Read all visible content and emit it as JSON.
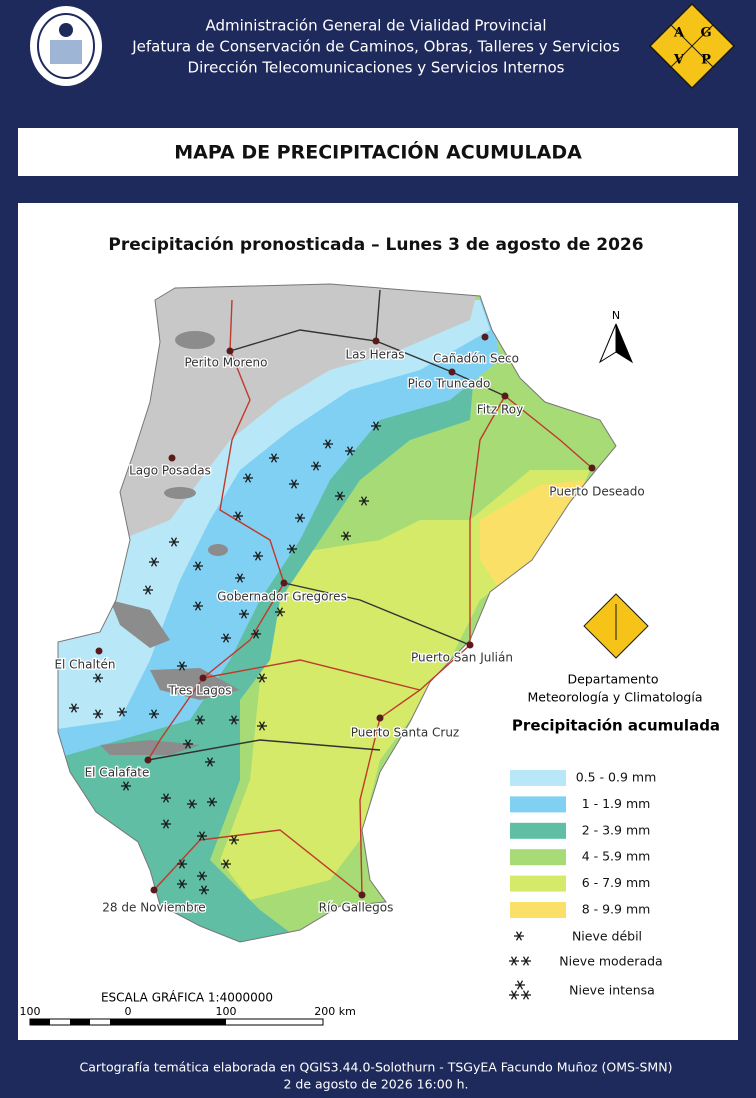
{
  "header": {
    "lines": [
      "Administración General de Vialidad Provincial",
      "Jefatura de Conservación de Caminos, Obras, Talleres y Servicios",
      "Dirección Telecomunicaciones y Servicios Internos"
    ],
    "logo_letters": [
      "A",
      "G",
      "V",
      "P"
    ]
  },
  "title": "MAPA DE PRECIPITACIÓN ACUMULADA",
  "map": {
    "subtitle": "Precipitación pronosticada – Lunes 3 de agosto de 2026",
    "north": "N",
    "places": [
      "Perito Moreno",
      "Las Heras",
      "Cañadón Seco",
      "Pico Truncado",
      "Fitz Roy",
      "Puerto Deseado",
      "Lago Posadas",
      "Gobernador Gregores",
      "Puerto San Julián",
      "El Chaltén",
      "Tres Lagos",
      "Puerto Santa Cruz",
      "El Calafate",
      "28 de Noviembre",
      "Río Gallegos"
    ],
    "department": [
      "Departamento",
      "Meteorología y Climatología"
    ],
    "legend": {
      "title": "Precipitación acumulada",
      "items": [
        {
          "label": "0.5 - 0.9 mm",
          "color": "#b8e8f8"
        },
        {
          "label": "1 - 1.9 mm",
          "color": "#80d0f4"
        },
        {
          "label": "2 - 3.9 mm",
          "color": "#5fbea3"
        },
        {
          "label": "4 - 5.9 mm",
          "color": "#a6db76"
        },
        {
          "label": "6 - 7.9 mm",
          "color": "#d4ea68"
        },
        {
          "label": "8 - 9.9 mm",
          "color": "#fbe068"
        }
      ],
      "snow": [
        "Nieve débil",
        "Nieve moderada",
        "Nieve intensa"
      ]
    },
    "scale": {
      "title": "ESCALA GRÁFICA 1:4000000",
      "labels": [
        "100",
        "0",
        "100",
        "200 km"
      ]
    }
  },
  "footer": [
    "Cartografía temática elaborada en QGIS3.44.0-Solothurn - TSGyEA Facundo Muñoz (OMS-SMN)",
    "2 de agosto de 2026 16:00 h."
  ]
}
